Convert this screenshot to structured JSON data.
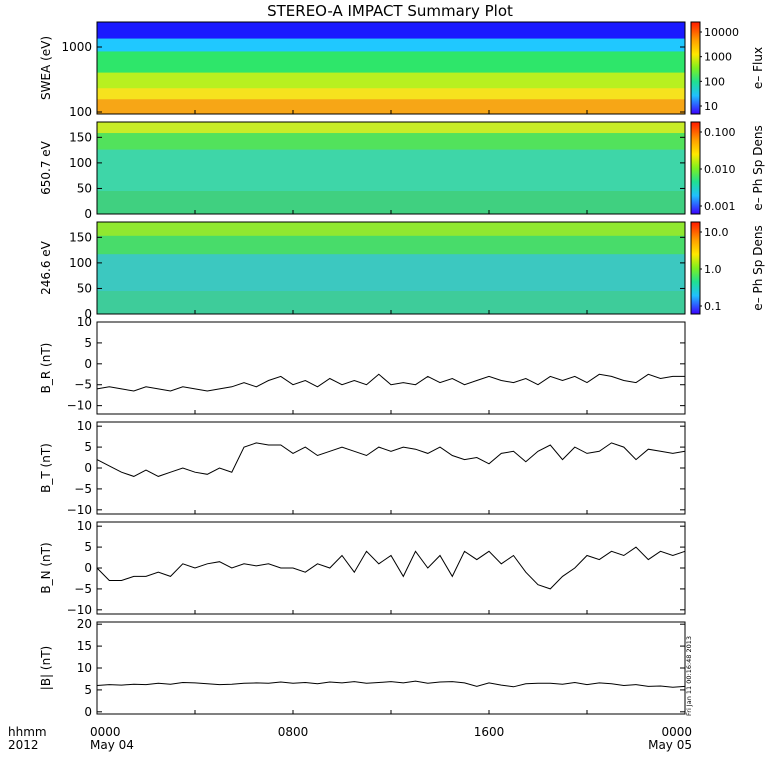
{
  "title": "STEREO-A IMPACT Summary Plot",
  "chart_data": [
    {
      "type": "heatmap",
      "ylabel": "SWEA (eV)",
      "ylog": true,
      "yticks": [
        "1000",
        "100"
      ],
      "colorbar": {
        "label": "e– Flux",
        "ticks": [
          "10000",
          "1000",
          "100",
          "10"
        ]
      },
      "bands": [
        {
          "y_from": 0.0,
          "y_to": 0.18,
          "color": "#1a1aff"
        },
        {
          "y_from": 0.18,
          "y_to": 0.32,
          "color": "#20c8ff"
        },
        {
          "y_from": 0.32,
          "y_to": 0.55,
          "color": "#2ee66a"
        },
        {
          "y_from": 0.55,
          "y_to": 0.72,
          "color": "#b8f020"
        },
        {
          "y_from": 0.72,
          "y_to": 0.84,
          "color": "#f6e21e"
        },
        {
          "y_from": 0.84,
          "y_to": 1.0,
          "color": "#f7a616"
        }
      ]
    },
    {
      "type": "heatmap",
      "ylabel": "650.7 eV",
      "ylim": [
        0,
        180
      ],
      "yticks": [
        "150",
        "100",
        "50",
        "0"
      ],
      "colorbar": {
        "label": "e– Ph Sp Dens",
        "ticks": [
          "0.100",
          "0.010",
          "0.001"
        ]
      },
      "bands": [
        {
          "y_from": 0.0,
          "y_to": 0.12,
          "color": "#c8ec28"
        },
        {
          "y_from": 0.12,
          "y_to": 0.3,
          "color": "#52e25c"
        },
        {
          "y_from": 0.3,
          "y_to": 0.75,
          "color": "#3ed6a8"
        },
        {
          "y_from": 0.75,
          "y_to": 1.0,
          "color": "#40d080"
        }
      ]
    },
    {
      "type": "heatmap",
      "ylabel": "246.6 eV",
      "ylim": [
        0,
        180
      ],
      "yticks": [
        "150",
        "100",
        "50",
        "0"
      ],
      "colorbar": {
        "label": "e– Ph Sp Dens",
        "ticks": [
          "10.0",
          "1.0",
          "0.1"
        ]
      },
      "bands": [
        {
          "y_from": 0.0,
          "y_to": 0.15,
          "color": "#90e830"
        },
        {
          "y_from": 0.15,
          "y_to": 0.35,
          "color": "#48dc6a"
        },
        {
          "y_from": 0.35,
          "y_to": 0.75,
          "color": "#3cc8c0"
        },
        {
          "y_from": 0.75,
          "y_to": 1.0,
          "color": "#3ecc9a"
        }
      ]
    },
    {
      "type": "line",
      "ylabel": "B_R (nT)",
      "ylim": [
        -12,
        10
      ],
      "yticks": [
        "10",
        "5",
        "0",
        "−5",
        "−10"
      ],
      "x": [
        0,
        0.5,
        1,
        1.5,
        2,
        2.5,
        3,
        3.5,
        4,
        4.5,
        5,
        5.5,
        6,
        6.5,
        7,
        7.5,
        8,
        8.5,
        9,
        9.5,
        10,
        10.5,
        11,
        11.5,
        12,
        12.5,
        13,
        13.5,
        14,
        14.5,
        15,
        15.5,
        16,
        16.5,
        17,
        17.5,
        18,
        18.5,
        19,
        19.5,
        20,
        20.5,
        21,
        21.5,
        22,
        22.5,
        23,
        23.5,
        24
      ],
      "y": [
        -6,
        -5.5,
        -6,
        -6.5,
        -5.5,
        -6,
        -6.5,
        -5.5,
        -6,
        -6.5,
        -6,
        -5.5,
        -4.5,
        -5.5,
        -4,
        -3,
        -5,
        -4,
        -5.5,
        -3.5,
        -5,
        -4,
        -5,
        -2.5,
        -5,
        -4.5,
        -5,
        -3,
        -4.5,
        -3.5,
        -5,
        -4,
        -3,
        -4,
        -4.5,
        -3.5,
        -5,
        -3,
        -4,
        -3,
        -4.5,
        -2.5,
        -3,
        -4,
        -4.5,
        -2.5,
        -3.5,
        -3,
        -3
      ]
    },
    {
      "type": "line",
      "ylabel": "B_T (nT)",
      "ylim": [
        -11,
        11
      ],
      "yticks": [
        "10",
        "5",
        "0",
        "−5",
        "−10"
      ],
      "x": [
        0,
        0.5,
        1,
        1.5,
        2,
        2.5,
        3,
        3.5,
        4,
        4.5,
        5,
        5.5,
        6,
        6.5,
        7,
        7.5,
        8,
        8.5,
        9,
        9.5,
        10,
        10.5,
        11,
        11.5,
        12,
        12.5,
        13,
        13.5,
        14,
        14.5,
        15,
        15.5,
        16,
        16.5,
        17,
        17.5,
        18,
        18.5,
        19,
        19.5,
        20,
        20.5,
        21,
        21.5,
        22,
        22.5,
        23,
        23.5,
        24
      ],
      "y": [
        2,
        0.5,
        -1,
        -2,
        -0.5,
        -2,
        -1,
        0,
        -1,
        -1.5,
        0,
        -1,
        5,
        6,
        5.5,
        5.5,
        3.5,
        5,
        3,
        4,
        5,
        4,
        3,
        5,
        4,
        5,
        4.5,
        3.5,
        5,
        3,
        2,
        2.5,
        1,
        3.5,
        4,
        1.5,
        4,
        5.5,
        2,
        5,
        3.5,
        4,
        6,
        5,
        2,
        4.5,
        4,
        3.5,
        4
      ]
    },
    {
      "type": "line",
      "ylabel": "B_N (nT)",
      "ylim": [
        -11,
        11
      ],
      "yticks": [
        "10",
        "5",
        "0",
        "−5",
        "−10"
      ],
      "x": [
        0,
        0.5,
        1,
        1.5,
        2,
        2.5,
        3,
        3.5,
        4,
        4.5,
        5,
        5.5,
        6,
        6.5,
        7,
        7.5,
        8,
        8.5,
        9,
        9.5,
        10,
        10.5,
        11,
        11.5,
        12,
        12.5,
        13,
        13.5,
        14,
        14.5,
        15,
        15.5,
        16,
        16.5,
        17,
        17.5,
        18,
        18.5,
        19,
        19.5,
        20,
        20.5,
        21,
        21.5,
        22,
        22.5,
        23,
        23.5,
        24
      ],
      "y": [
        0,
        -3,
        -3,
        -2,
        -2,
        -1,
        -2,
        1,
        0,
        1,
        1.5,
        0,
        1,
        0.5,
        1,
        0,
        0,
        -1,
        1,
        0,
        3,
        -1,
        4,
        1,
        3,
        -2,
        4,
        0,
        3,
        -2,
        4,
        2,
        4,
        1,
        3,
        -1,
        -4,
        -5,
        -2,
        0,
        3,
        2,
        4,
        3,
        5,
        2,
        4,
        3,
        4
      ]
    },
    {
      "type": "line",
      "ylabel": "|B| (nT)",
      "ylim": [
        -0.5,
        20.5
      ],
      "yticks": [
        "20",
        "15",
        "10",
        "5",
        "0"
      ],
      "x": [
        0,
        0.5,
        1,
        1.5,
        2,
        2.5,
        3,
        3.5,
        4,
        4.5,
        5,
        5.5,
        6,
        6.5,
        7,
        7.5,
        8,
        8.5,
        9,
        9.5,
        10,
        10.5,
        11,
        11.5,
        12,
        12.5,
        13,
        13.5,
        14,
        14.5,
        15,
        15.5,
        16,
        16.5,
        17,
        17.5,
        18,
        18.5,
        19,
        19.5,
        20,
        20.5,
        21,
        21.5,
        22,
        22.5,
        23,
        23.5,
        24
      ],
      "y": [
        6,
        6.2,
        6.1,
        6.3,
        6.2,
        6.5,
        6.3,
        6.7,
        6.6,
        6.4,
        6.2,
        6.3,
        6.5,
        6.6,
        6.5,
        6.8,
        6.5,
        6.7,
        6.4,
        6.8,
        6.6,
        6.9,
        6.5,
        6.7,
        6.9,
        6.6,
        7.0,
        6.5,
        6.8,
        6.9,
        6.6,
        5.8,
        6.6,
        6.1,
        5.7,
        6.4,
        6.5,
        6.5,
        6.3,
        6.7,
        6.2,
        6.6,
        6.4,
        6.0,
        6.2,
        5.8,
        5.9,
        5.6,
        5.8
      ]
    }
  ],
  "timestamp_note": "Fri Jan 11 00:16:48 2013",
  "x_axis": {
    "row1_left": "hhmm",
    "row2_left": "2012",
    "ticks": [
      {
        "hour": 0,
        "label": "0000",
        "sub": "May 04"
      },
      {
        "hour": 8,
        "label": "0800",
        "sub": ""
      },
      {
        "hour": 16,
        "label": "1600",
        "sub": ""
      },
      {
        "hour": 24,
        "label": "0000",
        "sub": "May 05"
      }
    ]
  }
}
